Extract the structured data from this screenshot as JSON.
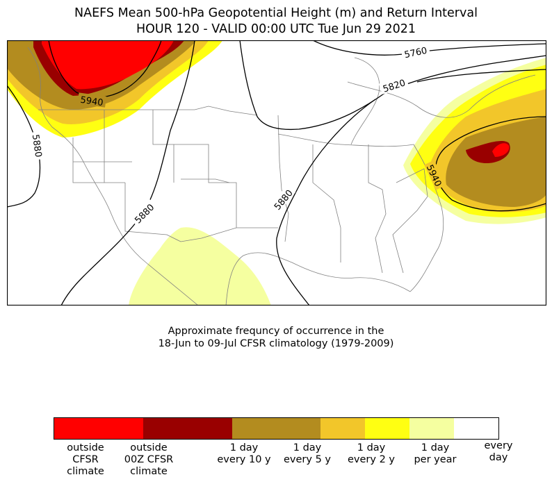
{
  "title": {
    "line1": "NAEFS Mean 500-hPa Geopotential Height (m) and Return Interval",
    "line2": "HOUR 120 - VALID 00:00 UTC Tue Jun 29 2021"
  },
  "contours": {
    "labels": [
      "5760",
      "5820",
      "5940",
      "5880",
      "5880",
      "5880",
      "5940"
    ]
  },
  "caption": {
    "line1": "Approximate frequncy of occurrence in the",
    "line2": "18-Jun to 09-Jul CFSR climatology (1979-2009)"
  },
  "colorbar": {
    "segments": [
      {
        "color": "#ff0000"
      },
      {
        "color": "#ff0000"
      },
      {
        "color": "#990000"
      },
      {
        "color": "#990000"
      },
      {
        "color": "#b38c1f"
      },
      {
        "color": "#b38c1f"
      },
      {
        "color": "#f2c62a"
      },
      {
        "color": "#ffff12"
      },
      {
        "color": "#f5ffa0"
      },
      {
        "color": "#ffffff"
      }
    ],
    "labels": [
      "outside\nCFSR\nclimate",
      "outside\n00Z CFSR\nclimate",
      "1 day\nevery 10 y",
      "1 day\nevery 5 y",
      "1 day\nevery 2 y",
      "1 day\nper year",
      "every\nday"
    ]
  },
  "palette": {
    "outside_cfsr": "#ff0000",
    "outside_00z": "#990000",
    "every_10y": "#b38c1f",
    "every_5y": "#f2c62a",
    "every_2y": "#ffff12",
    "per_year": "#f5ffa0",
    "every_day": "#ffffff"
  }
}
